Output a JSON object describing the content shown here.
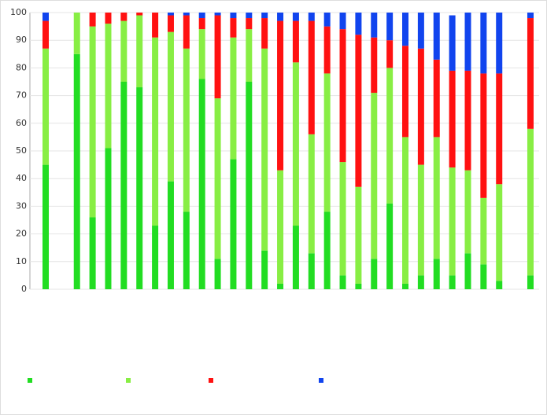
{
  "chart_data": {
    "type": "stacked_bar",
    "categories": [
      null,
      null,
      null,
      null,
      null,
      null,
      null,
      null,
      null,
      null,
      null,
      null,
      null,
      null,
      null,
      null,
      null,
      null,
      null,
      null,
      null,
      null,
      null,
      null,
      null,
      null,
      null,
      null,
      null,
      null,
      null,
      null
    ],
    "series": [
      {
        "color": "#22dd22",
        "values": [
          45,
          null,
          85,
          26,
          51,
          75,
          73,
          23,
          39,
          28,
          76,
          11,
          47,
          75,
          14,
          2,
          23,
          13,
          28,
          5,
          2,
          11,
          31,
          2,
          5,
          11,
          5,
          13,
          9,
          3,
          null,
          5
        ]
      },
      {
        "color": "#88ee44",
        "values": [
          42,
          null,
          15,
          69,
          45,
          22,
          26,
          68,
          54,
          59,
          18,
          58,
          44,
          19,
          73,
          41,
          59,
          43,
          50,
          41,
          35,
          60,
          49,
          53,
          40,
          44,
          39,
          30,
          24,
          35,
          null,
          53
        ]
      },
      {
        "color": "#ff1111",
        "values": [
          10,
          null,
          0,
          5,
          4,
          3,
          1,
          9,
          6,
          12,
          4,
          30,
          7,
          4,
          11,
          54,
          15,
          41,
          17,
          48,
          55,
          20,
          10,
          33,
          42,
          28,
          35,
          36,
          45,
          40,
          null,
          40
        ]
      },
      {
        "color": "#1144ee",
        "values": [
          3,
          null,
          0,
          0,
          0,
          0,
          0,
          0,
          1,
          1,
          2,
          1,
          2,
          2,
          2,
          3,
          3,
          3,
          5,
          6,
          8,
          9,
          10,
          12,
          13,
          17,
          20,
          21,
          22,
          22,
          null,
          2
        ]
      }
    ],
    "ylim": [
      0,
      100
    ],
    "yticks": [
      0,
      10,
      20,
      30,
      40,
      50,
      60,
      70,
      80,
      90,
      100
    ],
    "grid": true
  }
}
